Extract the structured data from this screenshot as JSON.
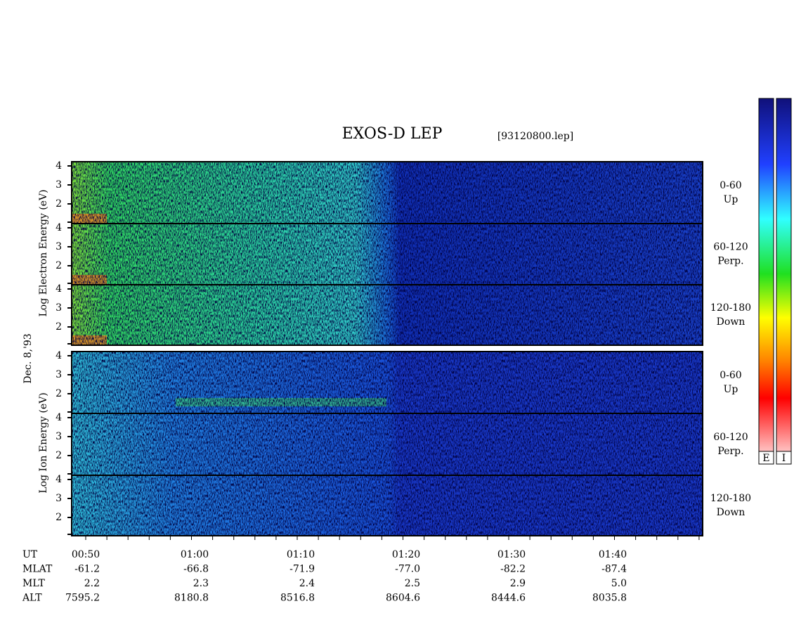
{
  "header": {
    "title": "EXOS-D LEP",
    "file": "[93120800.lep]"
  },
  "y_axis": {
    "electron_label": "Log Electron Energy (eV)",
    "ion_label": "Log Ion Energy (eV)",
    "date": "Dec. 8,'93",
    "tick_labels": [
      "4",
      "3",
      "2"
    ]
  },
  "panels": [
    {
      "label": "0-60",
      "direction": "Up"
    },
    {
      "label": "60-120",
      "direction": "Perp."
    },
    {
      "label": "120-180",
      "direction": "Down"
    }
  ],
  "colorbars": [
    "E",
    "I"
  ],
  "time_table": {
    "rows": [
      {
        "label": "UT",
        "values": [
          "00:50",
          "01:00",
          "01:10",
          "01:20",
          "01:30",
          "01:40"
        ]
      },
      {
        "label": "MLAT",
        "values": [
          "-61.2",
          "-66.8",
          "-71.9",
          "-77.0",
          "-82.2",
          "-87.4"
        ]
      },
      {
        "label": "MLT",
        "values": [
          "2.2",
          "2.3",
          "2.4",
          "2.5",
          "2.9",
          "5.0"
        ]
      },
      {
        "label": "ALT",
        "values": [
          "7595.2",
          "8180.8",
          "8516.8",
          "8604.6",
          "8444.6",
          "8035.8"
        ]
      }
    ]
  }
}
